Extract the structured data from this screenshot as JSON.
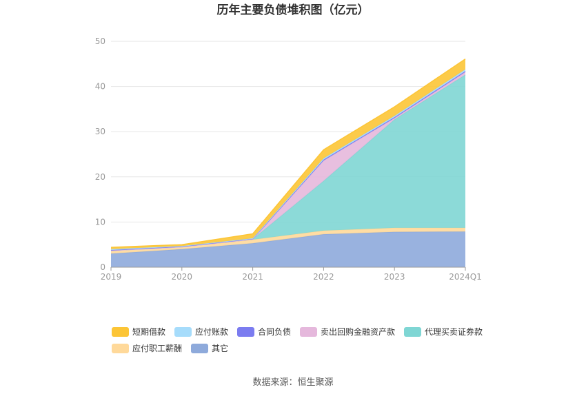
{
  "chart_data": {
    "type": "area",
    "stacked": true,
    "title": "历年主要负债堆积图（亿元）",
    "x": [
      "2019",
      "2020",
      "2021",
      "2022",
      "2023",
      "2024Q1"
    ],
    "ylim": [
      0,
      50
    ],
    "yticks": [
      0,
      10,
      20,
      30,
      40,
      50
    ],
    "grid": true,
    "legend_position": "bottom",
    "series": [
      {
        "name": "其它",
        "color": "#8eaadb",
        "values": [
          3.0,
          4.0,
          5.3,
          7.3,
          7.8,
          7.9
        ]
      },
      {
        "name": "应付职工薪酬",
        "color": "#ffd99a",
        "values": [
          0.7,
          0.5,
          0.8,
          0.8,
          0.9,
          0.8
        ]
      },
      {
        "name": "代理买卖证券款",
        "color": "#7fd6d4",
        "values": [
          0.0,
          0.0,
          0.1,
          11.0,
          24.0,
          33.9
        ]
      },
      {
        "name": "卖出回购金融资产款",
        "color": "#e5b8dc",
        "values": [
          0.0,
          0.0,
          0.0,
          4.5,
          0.3,
          0.6
        ]
      },
      {
        "name": "合同负债",
        "color": "#7b7cf0",
        "values": [
          0.1,
          0.1,
          0.1,
          0.2,
          0.2,
          0.2
        ]
      },
      {
        "name": "应付账款",
        "color": "#a6dcfb",
        "values": [
          0.2,
          0.1,
          0.1,
          0.3,
          0.3,
          0.4
        ]
      },
      {
        "name": "短期借款",
        "color": "#fcc536",
        "values": [
          0.4,
          0.3,
          1.0,
          1.9,
          2.0,
          2.3
        ]
      }
    ],
    "legend_order": [
      "短期借款",
      "应付账款",
      "合同负债",
      "卖出回购金融资产款",
      "代理买卖证券款",
      "应付职工薪酬",
      "其它"
    ]
  },
  "source": "数据来源：恒生聚源"
}
